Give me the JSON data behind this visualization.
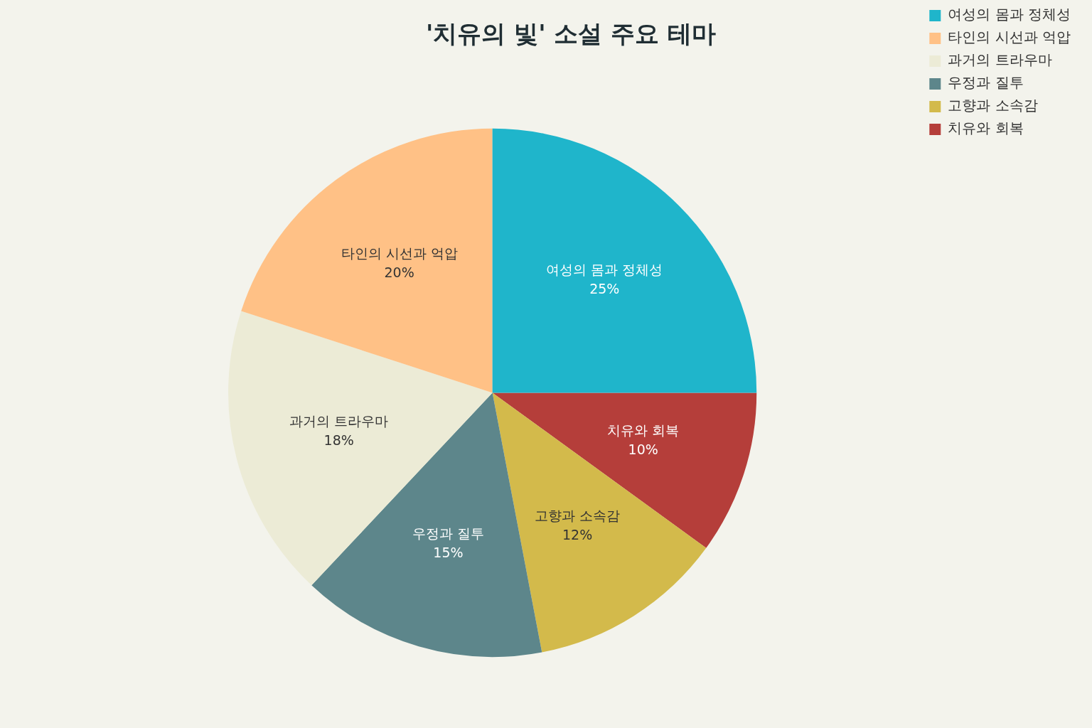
{
  "chart_data": {
    "type": "pie",
    "title": "'치유의 빛' 소설 주요 테마",
    "categories": [
      "여성의 몸과 정체성",
      "타인의 시선과 억압",
      "과거의 트라우마",
      "우정과 질투",
      "고향과 소속감",
      "치유와 회복"
    ],
    "values": [
      25,
      20,
      18,
      15,
      12,
      10
    ],
    "colors": [
      "#1fb5cb",
      "#ffc186",
      "#ecebd6",
      "#5d868b",
      "#d3ba4b",
      "#b53e3a"
    ],
    "value_labels": [
      "25%",
      "20%",
      "18%",
      "15%",
      "12%",
      "10%"
    ],
    "legend": "top right"
  }
}
